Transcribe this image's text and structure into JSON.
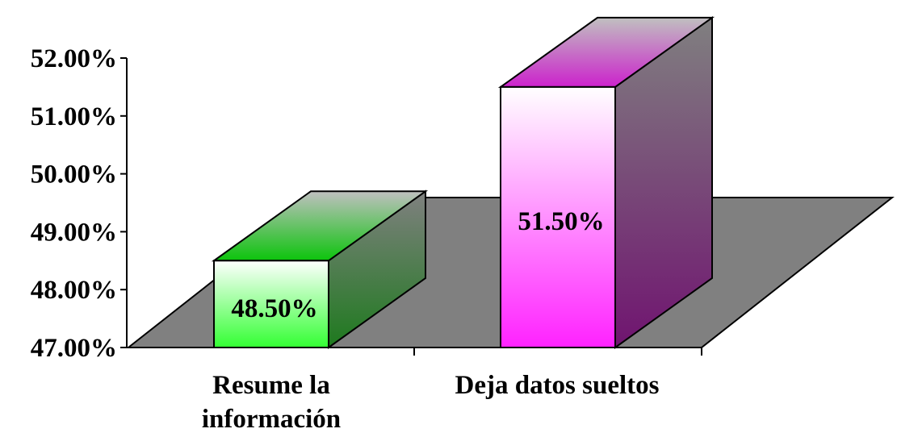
{
  "chart_data": {
    "type": "bar",
    "style": "3d-column",
    "categories": [
      "Resume la|información",
      "Deja datos sueltos"
    ],
    "values": [
      48.5,
      51.5
    ],
    "data_labels": [
      "48.50%",
      "51.50%"
    ],
    "y_tick_labels": [
      "47.00%",
      "48.00%",
      "49.00%",
      "50.00%",
      "51.00%",
      "52.00%"
    ],
    "y_ticks": [
      47,
      48,
      49,
      50,
      51,
      52
    ],
    "ylim": [
      47,
      52
    ],
    "grid": false,
    "legend": "none",
    "colors": {
      "floor": "#808080",
      "bar1_front_top": "#ffffff",
      "bar1_front_bottom": "#33ff33",
      "bar1_top": "#0cc40c",
      "bar1_side": "#1e8a1e",
      "bar2_front_top": "#ffffff",
      "bar2_front_bottom": "#ff22ff",
      "bar2_top": "#cc22cc",
      "bar2_side": "#7a1a7a"
    }
  }
}
